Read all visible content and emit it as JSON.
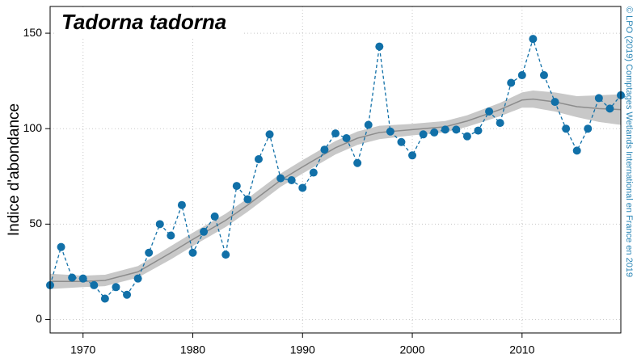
{
  "chart_data": {
    "type": "line",
    "title": "Tadorna tadorna",
    "y_label": "Indice d'abondance",
    "credit": "© LPO (2019) Comptages Wetlands International en France en 2019",
    "xlim": [
      1967,
      2019
    ],
    "ylim": [
      -7,
      164
    ],
    "xticks": [
      1970,
      1980,
      1990,
      2000,
      2010
    ],
    "yticks": [
      0,
      50,
      100,
      150
    ],
    "grid": true,
    "x": [
      1967,
      1968,
      1969,
      1970,
      1971,
      1972,
      1973,
      1974,
      1975,
      1976,
      1977,
      1978,
      1979,
      1980,
      1981,
      1982,
      1983,
      1984,
      1985,
      1986,
      1987,
      1988,
      1989,
      1990,
      1991,
      1992,
      1993,
      1994,
      1995,
      1996,
      1997,
      1998,
      1999,
      2000,
      2001,
      2002,
      2003,
      2004,
      2005,
      2006,
      2007,
      2008,
      2009,
      2010,
      2011,
      2012,
      2013,
      2014,
      2015,
      2016,
      2017,
      2018,
      2019
    ],
    "series": [
      {
        "color": "#1170a8",
        "values": [
          18,
          38,
          22,
          21.5,
          18,
          11,
          17,
          13,
          21.5,
          35,
          50,
          44,
          60,
          35,
          46,
          54,
          34,
          70,
          63,
          84,
          97,
          74,
          73,
          69,
          77,
          89,
          97.5,
          95,
          82,
          102,
          143,
          98.5,
          93,
          86,
          97,
          98,
          99.5,
          99.5,
          96,
          99,
          109,
          103,
          124,
          128,
          147,
          128,
          114,
          100,
          88.5,
          100,
          116,
          110.5,
          117.5
        ]
      }
    ],
    "trend": {
      "color": "#8c8c8c",
      "band_color": "#c8c8c8",
      "x": [
        1967,
        1970,
        1972,
        1975,
        1978,
        1980,
        1983,
        1985,
        1988,
        1990,
        1993,
        1995,
        1997,
        2000,
        2003,
        2005,
        2008,
        2010,
        2011,
        2013,
        2015,
        2017,
        2019
      ],
      "values": [
        20,
        20,
        20.5,
        25,
        35,
        42,
        52,
        60,
        73,
        80,
        90,
        95,
        98,
        99.5,
        101,
        104,
        110,
        115,
        115.5,
        114,
        111.5,
        110.5,
        110
      ],
      "lower": [
        16,
        17,
        17.5,
        22,
        31.5,
        38.5,
        48.5,
        56.5,
        69.5,
        76.5,
        86.5,
        91.5,
        94.5,
        96.5,
        98,
        101,
        106.5,
        111,
        111,
        109,
        106,
        103.5,
        102
      ],
      "upper": [
        24,
        23,
        23.5,
        28,
        38.5,
        45.5,
        55.5,
        63.5,
        76.5,
        83.5,
        93.5,
        98.5,
        101.5,
        102.5,
        104,
        107,
        113.5,
        119,
        120,
        119,
        117,
        117.5,
        118
      ]
    }
  }
}
